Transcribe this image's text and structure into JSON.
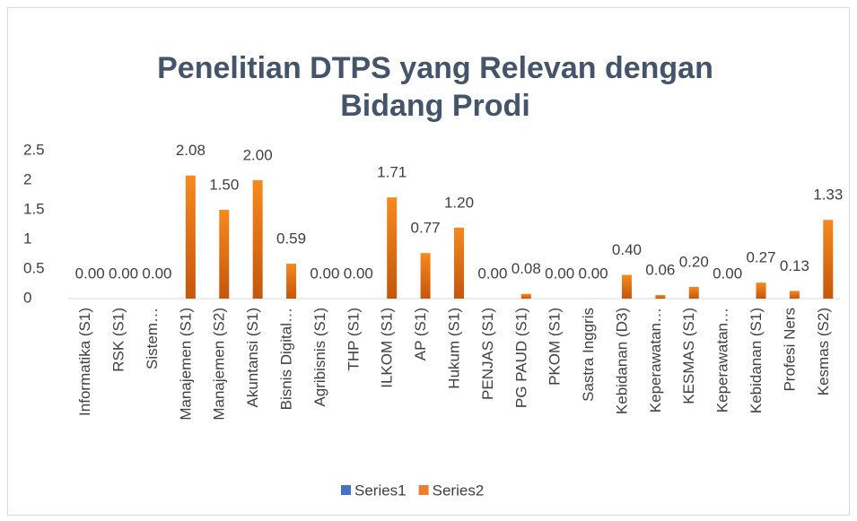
{
  "chart_data": {
    "type": "bar",
    "title": "Penelitian DTPS yang Relevan dengan Bidang Prodi",
    "categories": [
      "Informatika (S1)",
      "RSK (S1)",
      "Sistem…",
      "Manajemen (S1)",
      "Manajemen (S2)",
      "Akuntansi  (S1)",
      "Bisnis Digital…",
      "Agribisnis  (S1)",
      "THP (S1)",
      "ILKOM (S1)",
      "AP (S1)",
      "Hukum (S1)",
      "PENJAS (S1)",
      "PG PAUD (S1)",
      "PKOM (S1)",
      "Sastra Inggris",
      "Kebidanan  (D3)",
      "Keperawatan…",
      "KESMAS (S1)",
      "Keperawatan…",
      "Kebidanan (S1)",
      "Profesi Ners",
      "Kesmas (S2)"
    ],
    "series": [
      {
        "name": "Series1",
        "color": "#4472c4",
        "values": [
          null,
          null,
          null,
          null,
          null,
          null,
          null,
          null,
          null,
          null,
          null,
          null,
          null,
          null,
          null,
          null,
          null,
          null,
          null,
          null,
          null,
          null,
          null
        ]
      },
      {
        "name": "Series2",
        "color": "#ed7d31",
        "values": [
          0,
          0,
          0,
          2.08,
          1.5,
          2.0,
          0.59,
          0,
          0,
          1.71,
          0.77,
          1.2,
          0,
          0.08,
          0,
          0,
          0.4,
          0.06,
          0.2,
          0,
          0.27,
          0.13,
          1.33
        ],
        "value_labels": [
          "0.00",
          "0.00",
          "0.00",
          "2.08",
          "1.50",
          "2.00",
          "0.59",
          "0.00",
          "0.00",
          "1.71",
          "0.77",
          "1.20",
          "0.00",
          "0.08",
          "0.00",
          "0.00",
          "0.40",
          "0.06",
          "0.20",
          "0.00",
          "0.27",
          "0.13",
          "1.33"
        ]
      }
    ],
    "ylim": [
      0,
      2.5
    ],
    "yticks": [
      0,
      0.5,
      1,
      1.5,
      2,
      2.5
    ],
    "grid": false,
    "legend": "bottom"
  }
}
